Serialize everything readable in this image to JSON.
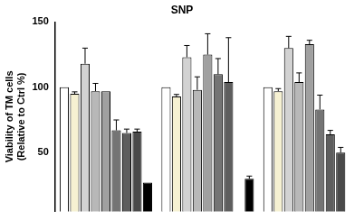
{
  "chart_data": {
    "type": "bar",
    "title": "SNP",
    "ylabel": [
      "Viability of TM cells",
      "(Relative to Ctrl %)"
    ],
    "categories": [
      null,
      null,
      null
    ],
    "series": [
      {
        "color": "#ffffff",
        "values": [
          100,
          100,
          100
        ],
        "errors": [
          0,
          0,
          0
        ]
      },
      {
        "color": "#f6f1d2",
        "values": [
          95,
          93,
          97
        ],
        "errors": [
          1.5,
          1.5,
          2
        ]
      },
      {
        "color": "#d2d2d2",
        "values": [
          118,
          123,
          130
        ],
        "errors": [
          12,
          9,
          9
        ]
      },
      {
        "color": "#b8b8b8",
        "values": [
          97,
          98,
          104
        ],
        "errors": [
          6,
          10,
          7
        ]
      },
      {
        "color": "#a0a0a0",
        "values": [
          97,
          125,
          133
        ],
        "errors": [
          0,
          16,
          3
        ]
      },
      {
        "color": "#747474",
        "values": [
          67,
          110,
          83
        ],
        "errors": [
          8,
          12,
          11
        ]
      },
      {
        "color": "#5e5e5e",
        "values": [
          65,
          104,
          64
        ],
        "errors": [
          3,
          34,
          3
        ]
      },
      {
        "color": "#4a4a4a",
        "values": [
          66,
          null,
          50
        ],
        "errors": [
          2,
          null,
          4
        ]
      },
      {
        "color": "#000000",
        "values": [
          27,
          30,
          null
        ],
        "errors": [
          0,
          2,
          null
        ]
      }
    ],
    "ylim": [
      5,
      150
    ],
    "yticks": [
      50,
      100,
      150
    ],
    "grid": false,
    "tick_labels": "y"
  }
}
